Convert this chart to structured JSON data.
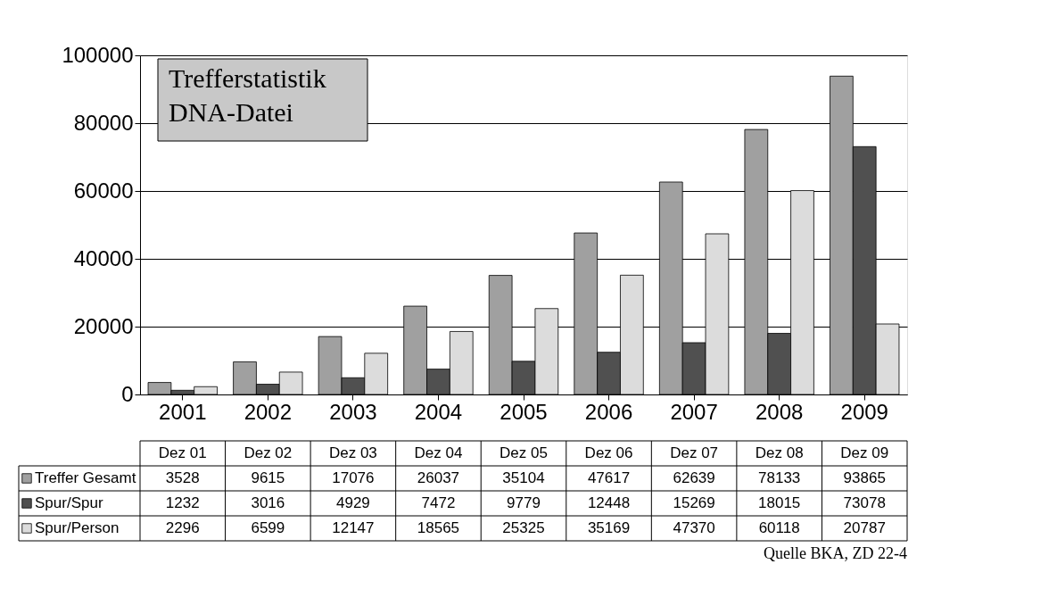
{
  "chart_data": {
    "type": "bar",
    "title": "Trefferstatistik\nDNA-Datei",
    "categories": [
      "2001",
      "2002",
      "2003",
      "2004",
      "2005",
      "2006",
      "2007",
      "2008",
      "2009"
    ],
    "series": [
      {
        "name": "Treffer Gesamt",
        "color": "#a0a0a0",
        "values": [
          3528,
          9615,
          17076,
          26037,
          35104,
          47617,
          62639,
          78133,
          93865
        ]
      },
      {
        "name": "Spur/Spur",
        "color": "#505050",
        "values": [
          1232,
          3016,
          4929,
          7472,
          9779,
          12448,
          15269,
          18015,
          73078
        ]
      },
      {
        "name": "Spur/Person",
        "color": "#dcdcdc",
        "values": [
          2296,
          6599,
          12147,
          18565,
          25325,
          35169,
          47370,
          60118,
          20787
        ]
      }
    ],
    "ylim": [
      0,
      100000
    ],
    "yticks": [
      0,
      20000,
      40000,
      60000,
      80000,
      100000
    ],
    "grid": "y",
    "data_labels": true,
    "legend": "bottom",
    "annotations": [
      "Dez 01",
      "Dez 02",
      "Dez 03",
      "Dez 04",
      "Dez 05",
      "Dez 06",
      "Dez 07",
      "Dez 08",
      "Dez 09",
      "Quelle BKA, ZD 22-4"
    ]
  }
}
